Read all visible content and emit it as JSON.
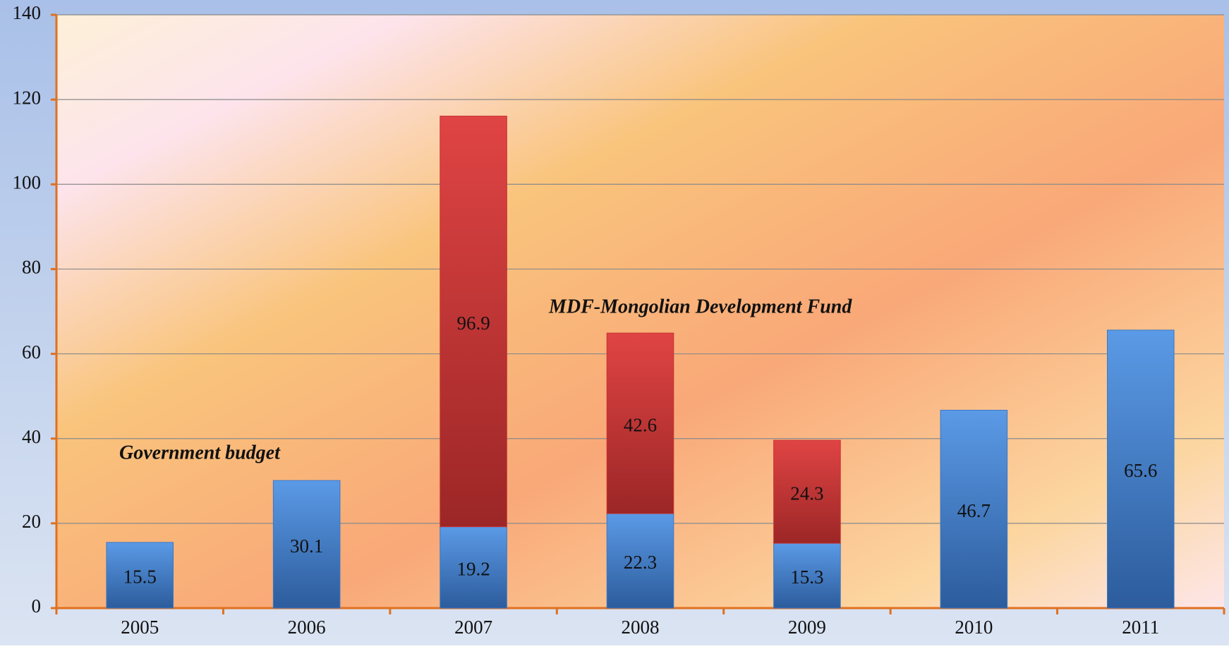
{
  "chart_data": {
    "type": "stacked_bar",
    "categories": [
      "2005",
      "2006",
      "2007",
      "2008",
      "2009",
      "2010",
      "2011"
    ],
    "series": [
      {
        "name": "Government budget",
        "color": "#3a78c8",
        "values": [
          15.5,
          30.1,
          19.2,
          22.3,
          15.3,
          46.7,
          65.6
        ]
      },
      {
        "name": "MDF-Mongolian Development Fund",
        "color": "#c83232",
        "values": [
          null,
          null,
          96.9,
          42.6,
          24.3,
          null,
          null
        ]
      }
    ],
    "ylim": [
      0,
      140
    ],
    "yticks": [
      0,
      20,
      40,
      60,
      80,
      100,
      120,
      140
    ],
    "grid": true
  }
}
